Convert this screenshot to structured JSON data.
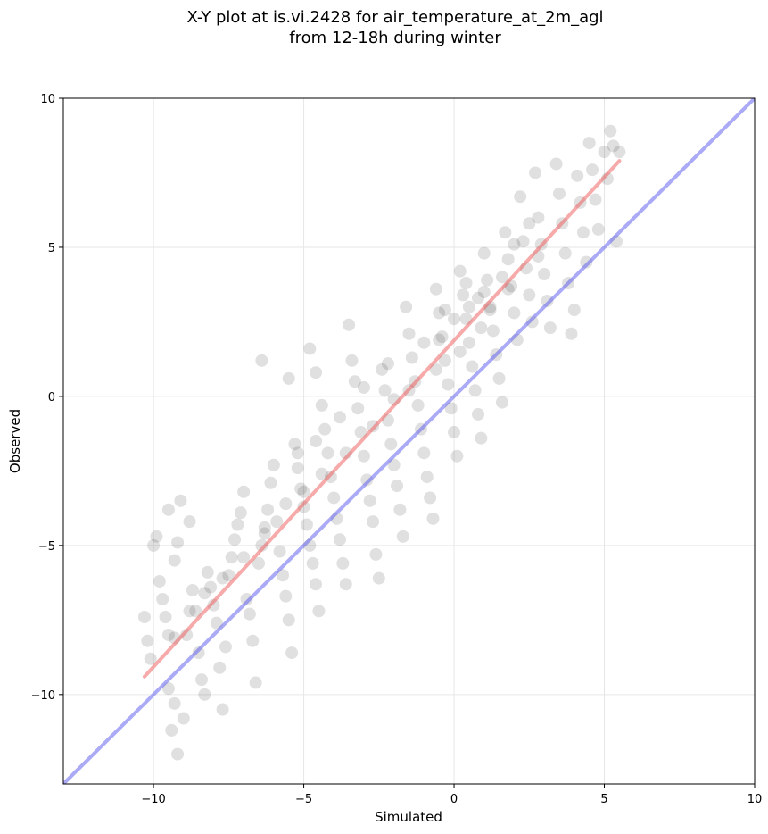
{
  "chart_data": {
    "type": "scatter",
    "title_lines": [
      "X-Y plot at is.vi.2428 for air_temperature_at_2m_agl",
      "from 12-18h during winter"
    ],
    "xlabel": "Simulated",
    "ylabel": "Observed",
    "xlim": [
      -13,
      10
    ],
    "ylim": [
      -13,
      10
    ],
    "xticks": [
      -10,
      -5,
      0,
      5,
      10
    ],
    "yticks": [
      -10,
      -5,
      0,
      5,
      10
    ],
    "xtick_labels": [
      "−10",
      "−5",
      "0",
      "5",
      "10"
    ],
    "ytick_labels": [
      "−10",
      "−5",
      "0",
      "5",
      "10"
    ],
    "grid": true,
    "point_color": "#222222",
    "points": [
      [
        -10.3,
        -7.4
      ],
      [
        -10.2,
        -8.2
      ],
      [
        -10.1,
        -8.8
      ],
      [
        -10.0,
        -5.0
      ],
      [
        -9.9,
        -4.7
      ],
      [
        -9.8,
        -6.2
      ],
      [
        -9.7,
        -6.8
      ],
      [
        -9.6,
        -7.4
      ],
      [
        -9.5,
        -8.0
      ],
      [
        -9.5,
        -9.8
      ],
      [
        -9.4,
        -11.2
      ],
      [
        -9.3,
        -10.3
      ],
      [
        -9.2,
        -12.0
      ],
      [
        -9.0,
        -10.8
      ],
      [
        -9.3,
        -5.5
      ],
      [
        -9.2,
        -4.9
      ],
      [
        -9.5,
        -3.8
      ],
      [
        -9.1,
        -3.5
      ],
      [
        -8.8,
        -4.2
      ],
      [
        -8.9,
        -8.0
      ],
      [
        -8.7,
        -6.5
      ],
      [
        -8.6,
        -7.2
      ],
      [
        -8.5,
        -8.6
      ],
      [
        -8.4,
        -9.5
      ],
      [
        -8.3,
        -10.0
      ],
      [
        -8.2,
        -5.9
      ],
      [
        -8.1,
        -6.4
      ],
      [
        -8.0,
        -7.0
      ],
      [
        -7.9,
        -7.6
      ],
      [
        -7.8,
        -9.1
      ],
      [
        -7.7,
        -10.5
      ],
      [
        -7.6,
        -8.4
      ],
      [
        -7.5,
        -6.0
      ],
      [
        -7.4,
        -5.4
      ],
      [
        -7.3,
        -4.8
      ],
      [
        -7.2,
        -4.3
      ],
      [
        -7.1,
        -3.9
      ],
      [
        -7.0,
        -3.2
      ],
      [
        -6.9,
        -6.8
      ],
      [
        -6.8,
        -7.3
      ],
      [
        -6.7,
        -8.2
      ],
      [
        -6.6,
        -9.6
      ],
      [
        -6.5,
        -5.6
      ],
      [
        -6.4,
        -5.0
      ],
      [
        -6.3,
        -4.4
      ],
      [
        -6.2,
        -3.8
      ],
      [
        -6.1,
        -2.9
      ],
      [
        -6.0,
        -2.3
      ],
      [
        -6.4,
        1.2
      ],
      [
        -5.9,
        -4.2
      ],
      [
        -5.8,
        -5.2
      ],
      [
        -5.7,
        -6.0
      ],
      [
        -5.6,
        -6.7
      ],
      [
        -5.5,
        -7.5
      ],
      [
        -5.4,
        -8.6
      ],
      [
        -5.5,
        0.6
      ],
      [
        -5.3,
        -1.6
      ],
      [
        -5.2,
        -2.4
      ],
      [
        -5.1,
        -3.1
      ],
      [
        -5.0,
        -3.7
      ],
      [
        -4.9,
        -4.3
      ],
      [
        -4.8,
        -5.0
      ],
      [
        -4.7,
        -5.6
      ],
      [
        -4.6,
        -6.3
      ],
      [
        -4.5,
        -7.2
      ],
      [
        -4.8,
        1.6
      ],
      [
        -4.6,
        0.8
      ],
      [
        -4.4,
        -0.3
      ],
      [
        -4.3,
        -1.1
      ],
      [
        -4.2,
        -1.9
      ],
      [
        -4.1,
        -2.7
      ],
      [
        -4.0,
        -3.4
      ],
      [
        -3.9,
        -4.1
      ],
      [
        -3.8,
        -4.8
      ],
      [
        -3.7,
        -5.6
      ],
      [
        -3.6,
        -6.3
      ],
      [
        -3.5,
        2.4
      ],
      [
        -3.4,
        1.2
      ],
      [
        -3.3,
        0.5
      ],
      [
        -3.2,
        -0.4
      ],
      [
        -3.1,
        -1.2
      ],
      [
        -3.0,
        -2.0
      ],
      [
        -2.9,
        -2.8
      ],
      [
        -2.8,
        -3.5
      ],
      [
        -2.7,
        -4.2
      ],
      [
        -2.6,
        -5.3
      ],
      [
        -2.5,
        -6.1
      ],
      [
        -2.4,
        0.9
      ],
      [
        -2.3,
        0.2
      ],
      [
        -2.2,
        -0.8
      ],
      [
        -2.1,
        -1.6
      ],
      [
        -2.0,
        -2.3
      ],
      [
        -1.9,
        -3.0
      ],
      [
        -1.8,
        -3.8
      ],
      [
        -1.7,
        -4.7
      ],
      [
        -1.6,
        3.0
      ],
      [
        -1.5,
        2.1
      ],
      [
        -1.4,
        1.3
      ],
      [
        -1.3,
        0.5
      ],
      [
        -1.2,
        -0.3
      ],
      [
        -1.1,
        -1.1
      ],
      [
        -1.0,
        -1.9
      ],
      [
        -0.9,
        -2.7
      ],
      [
        -0.8,
        -3.4
      ],
      [
        -0.7,
        -4.1
      ],
      [
        -0.6,
        3.6
      ],
      [
        -0.5,
        2.8
      ],
      [
        -0.4,
        2.0
      ],
      [
        -0.3,
        1.2
      ],
      [
        -0.2,
        0.4
      ],
      [
        -0.1,
        -0.4
      ],
      [
        0.0,
        -1.2
      ],
      [
        0.1,
        -2.0
      ],
      [
        0.2,
        4.2
      ],
      [
        0.3,
        3.4
      ],
      [
        0.4,
        2.6
      ],
      [
        0.5,
        1.8
      ],
      [
        0.6,
        1.0
      ],
      [
        0.7,
        0.2
      ],
      [
        0.8,
        -0.6
      ],
      [
        0.9,
        -1.4
      ],
      [
        1.0,
        4.8
      ],
      [
        1.1,
        3.9
      ],
      [
        1.2,
        3.0
      ],
      [
        1.3,
        2.2
      ],
      [
        1.4,
        1.4
      ],
      [
        1.5,
        0.6
      ],
      [
        1.6,
        -0.2
      ],
      [
        1.7,
        5.5
      ],
      [
        1.8,
        4.6
      ],
      [
        1.9,
        3.7
      ],
      [
        2.0,
        2.8
      ],
      [
        2.1,
        1.9
      ],
      [
        2.2,
        6.7
      ],
      [
        2.3,
        5.2
      ],
      [
        2.4,
        4.3
      ],
      [
        2.5,
        3.4
      ],
      [
        2.6,
        2.5
      ],
      [
        2.7,
        7.5
      ],
      [
        2.8,
        6.0
      ],
      [
        2.9,
        5.1
      ],
      [
        3.0,
        4.1
      ],
      [
        3.1,
        3.2
      ],
      [
        3.2,
        2.3
      ],
      [
        3.4,
        7.8
      ],
      [
        3.5,
        6.8
      ],
      [
        3.6,
        5.8
      ],
      [
        3.7,
        4.8
      ],
      [
        3.8,
        3.8
      ],
      [
        3.9,
        2.1
      ],
      [
        4.0,
        2.9
      ],
      [
        4.1,
        7.4
      ],
      [
        4.2,
        6.5
      ],
      [
        4.3,
        5.5
      ],
      [
        4.4,
        4.5
      ],
      [
        4.5,
        8.5
      ],
      [
        4.6,
        7.6
      ],
      [
        4.7,
        6.6
      ],
      [
        4.8,
        5.6
      ],
      [
        5.0,
        8.2
      ],
      [
        5.1,
        7.3
      ],
      [
        5.2,
        8.9
      ],
      [
        5.3,
        8.4
      ],
      [
        5.4,
        5.2
      ],
      [
        5.5,
        8.2
      ],
      [
        0.5,
        3.0
      ],
      [
        0.8,
        3.3
      ],
      [
        1.2,
        2.9
      ],
      [
        0.0,
        2.6
      ],
      [
        -0.3,
        2.9
      ],
      [
        0.4,
        3.8
      ],
      [
        1.0,
        3.5
      ],
      [
        -0.5,
        1.9
      ],
      [
        0.2,
        1.5
      ],
      [
        1.6,
        4.0
      ],
      [
        2.0,
        5.1
      ],
      [
        2.5,
        5.8
      ],
      [
        -2.0,
        -0.1
      ],
      [
        -1.5,
        0.2
      ],
      [
        -2.7,
        -1.0
      ],
      [
        -3.6,
        -1.9
      ],
      [
        -4.4,
        -2.6
      ],
      [
        -5.0,
        -3.2
      ],
      [
        -5.6,
        -3.6
      ],
      [
        -6.3,
        -4.6
      ],
      [
        -7.0,
        -5.4
      ],
      [
        -7.7,
        -6.1
      ],
      [
        -8.3,
        -6.6
      ],
      [
        -8.8,
        -7.2
      ],
      [
        -9.3,
        -8.1
      ],
      [
        -3.0,
        0.3
      ],
      [
        -3.8,
        -0.7
      ],
      [
        -4.6,
        -1.5
      ],
      [
        -5.2,
        -1.9
      ],
      [
        -2.2,
        1.1
      ],
      [
        -1.0,
        1.8
      ],
      [
        -0.6,
        0.9
      ],
      [
        0.9,
        2.3
      ],
      [
        1.8,
        3.6
      ],
      [
        2.8,
        4.7
      ]
    ],
    "series": [
      {
        "color": "#ee5555",
        "x": [
          -10.3,
          5.5
        ],
        "y": [
          -9.4,
          7.9
        ]
      },
      {
        "color": "#5555ee",
        "x": [
          -13,
          10
        ],
        "y": [
          -13,
          10
        ]
      }
    ]
  }
}
